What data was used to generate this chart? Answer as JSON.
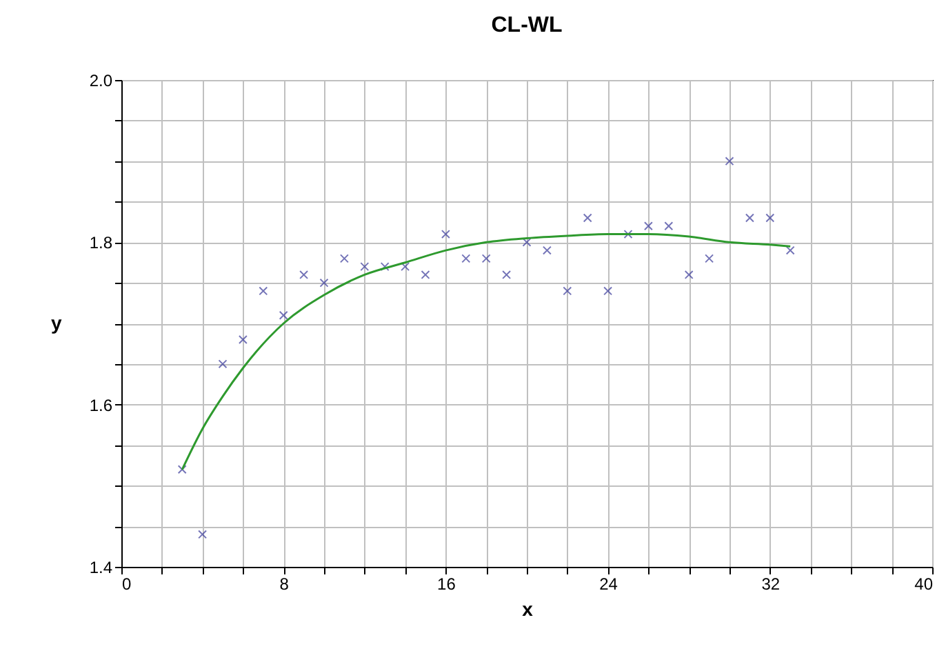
{
  "chart_data": {
    "type": "scatter",
    "title": "CL-WL",
    "xlabel": "x",
    "ylabel": "y",
    "xlim": [
      0,
      40
    ],
    "ylim": [
      1.4,
      2.0
    ],
    "xticks": [
      0,
      {
        "value": 2,
        "label": null
      },
      {
        "value": 4,
        "label": null
      },
      {
        "value": 6,
        "label": null
      },
      8,
      {
        "value": 10,
        "label": null
      },
      {
        "value": 12,
        "label": null
      },
      {
        "value": 14,
        "label": null
      },
      16,
      {
        "value": 18,
        "label": null
      },
      {
        "value": 20,
        "label": null
      },
      {
        "value": 22,
        "label": null
      },
      24,
      {
        "value": 26,
        "label": null
      },
      {
        "value": 28,
        "label": null
      },
      {
        "value": 30,
        "label": null
      },
      32,
      {
        "value": 34,
        "label": null
      },
      {
        "value": 36,
        "label": null
      },
      {
        "value": 38,
        "label": null
      },
      40
    ],
    "yticks": [
      1.4,
      {
        "value": 1.45,
        "label": null
      },
      {
        "value": 1.5,
        "label": null
      },
      {
        "value": 1.55,
        "label": null
      },
      1.6,
      {
        "value": 1.65,
        "label": null
      },
      {
        "value": 1.7,
        "label": null
      },
      {
        "value": 1.75,
        "label": null
      },
      1.8,
      {
        "value": 1.85,
        "label": null
      },
      {
        "value": 1.9,
        "label": null
      },
      {
        "value": 1.95,
        "label": null
      },
      {
        "value": 2,
        "label": "2.0"
      }
    ],
    "grid": true,
    "series": [
      {
        "type": "scatter",
        "marker": "cross",
        "color": "#3a3a9a",
        "x": [
          3,
          4,
          5,
          6,
          7,
          8,
          9,
          10,
          11,
          12,
          13,
          14,
          15,
          16,
          17,
          18,
          19,
          20,
          21,
          22,
          23,
          24,
          25,
          26,
          27,
          28,
          29,
          30,
          31,
          32,
          33
        ],
        "values": [
          1.52,
          1.44,
          1.65,
          1.68,
          1.74,
          1.71,
          1.76,
          1.75,
          1.78,
          1.77,
          1.77,
          1.77,
          1.76,
          1.81,
          1.78,
          1.78,
          1.76,
          1.8,
          1.79,
          1.74,
          1.83,
          1.74,
          1.81,
          1.82,
          1.82,
          1.76,
          1.78,
          1.9,
          1.83,
          1.83,
          1.79
        ]
      },
      {
        "type": "line",
        "marker": "none",
        "line_style": "solid",
        "color": "#2e9a2e",
        "x": [
          3,
          4,
          5,
          6,
          8,
          10,
          12,
          14,
          16,
          18,
          20,
          22,
          24,
          26,
          28,
          30,
          32,
          33
        ],
        "values": [
          1.52,
          1.57,
          1.61,
          1.645,
          1.7,
          1.735,
          1.76,
          1.775,
          1.79,
          1.8,
          1.805,
          1.808,
          1.81,
          1.81,
          1.807,
          1.8,
          1.797,
          1.795
        ]
      }
    ]
  }
}
